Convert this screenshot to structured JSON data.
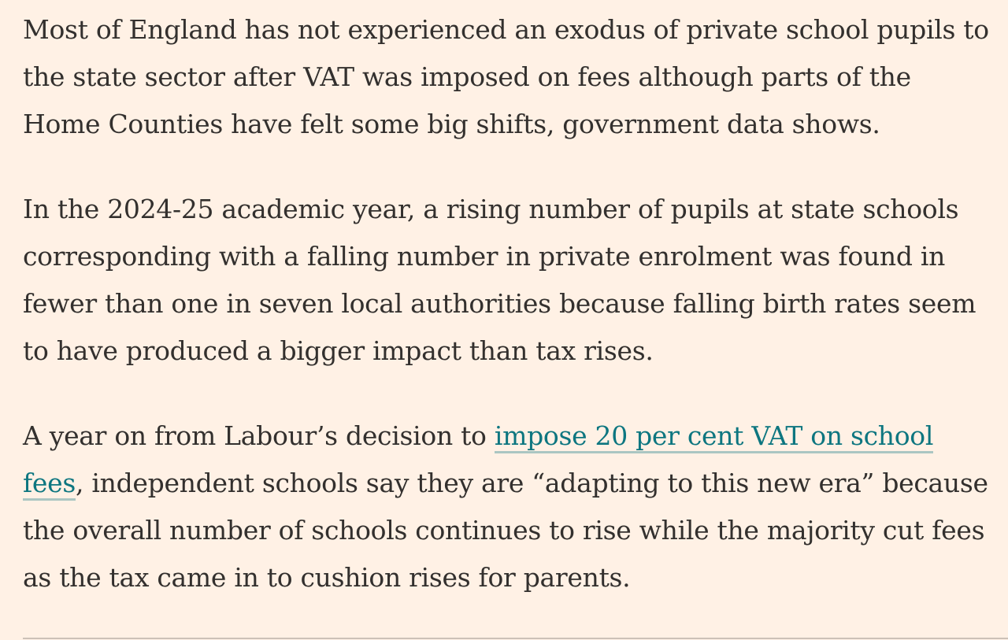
{
  "article": {
    "paragraphs": [
      {
        "text": "Most of England has not experienced an exodus of private school pupils to the state sector after VAT was imposed on fees although parts of the Home Counties have felt some big shifts, government data shows."
      },
      {
        "text": "In the 2024-25 academic year, a rising number of pupils at state schools corresponding with a falling number in private enrolment was found in fewer than one in seven local authorities because falling birth rates seem to have produced a bigger impact than tax rises."
      },
      {
        "before": "A year on from Labour’s decision to ",
        "link": "impose 20 per cent VAT on school fees",
        "after": ", independent schools say they are “adapting to this new era” because the overall number of schools continues to rise while the majority cut fees as the tax came in to cushion rises for parents."
      }
    ]
  },
  "colors": {
    "background": "#fff1e5",
    "text": "#33302e",
    "link": "#0d7680",
    "divider": "#ccc1b7"
  }
}
